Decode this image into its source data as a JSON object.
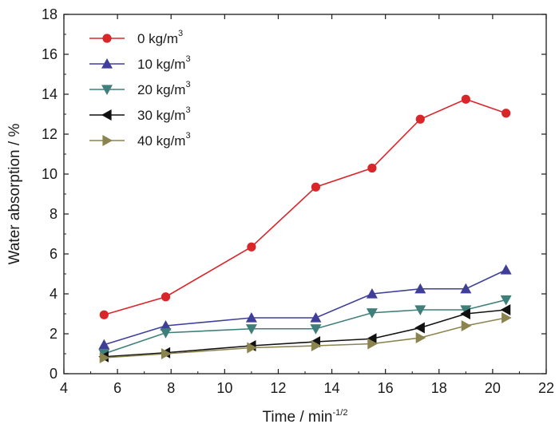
{
  "chart_data": {
    "type": "line",
    "xlabel": "Time / min",
    "xlabel_sup": "-1/2",
    "ylabel": "Water absorption / %",
    "xlim": [
      4,
      22
    ],
    "ylim": [
      0,
      18
    ],
    "xticks": [
      4,
      6,
      8,
      10,
      12,
      14,
      16,
      18,
      20,
      22
    ],
    "yticks": [
      0,
      2,
      4,
      6,
      8,
      10,
      12,
      14,
      16,
      18
    ],
    "grid": false,
    "legend_position": "top-left",
    "x": [
      5.5,
      7.8,
      11.0,
      13.4,
      15.5,
      17.3,
      19.0,
      20.5
    ],
    "series": [
      {
        "name": "0 kg/m",
        "name_sup": "3",
        "color": "#d9262b",
        "marker": "circle",
        "values": [
          2.95,
          3.85,
          6.35,
          9.35,
          10.3,
          12.75,
          13.75,
          13.05
        ]
      },
      {
        "name": "10 kg/m",
        "name_sup": "3",
        "color": "#3f3f9a",
        "marker": "triangle-up",
        "values": [
          1.45,
          2.4,
          2.8,
          2.8,
          4.0,
          4.25,
          4.25,
          5.2
        ]
      },
      {
        "name": "20 kg/m",
        "name_sup": "3",
        "color": "#3e7f7a",
        "marker": "triangle-down",
        "values": [
          1.0,
          2.05,
          2.25,
          2.25,
          3.05,
          3.2,
          3.2,
          3.7
        ]
      },
      {
        "name": "30 kg/m",
        "name_sup": "3",
        "color": "#111111",
        "marker": "triangle-left",
        "values": [
          0.85,
          1.05,
          1.4,
          1.6,
          1.75,
          2.3,
          3.0,
          3.2
        ]
      },
      {
        "name": "40 kg/m",
        "name_sup": "3",
        "color": "#8c844f",
        "marker": "triangle-right",
        "values": [
          0.8,
          1.0,
          1.3,
          1.4,
          1.5,
          1.8,
          2.4,
          2.8
        ]
      }
    ]
  }
}
